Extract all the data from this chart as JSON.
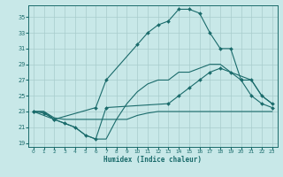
{
  "xlabel": "Humidex (Indice chaleur)",
  "xlim": [
    -0.5,
    23.5
  ],
  "ylim": [
    18.5,
    36.5
  ],
  "yticks": [
    19,
    21,
    23,
    25,
    27,
    29,
    31,
    33,
    35
  ],
  "xticks": [
    0,
    1,
    2,
    3,
    4,
    5,
    6,
    7,
    8,
    9,
    10,
    11,
    12,
    13,
    14,
    15,
    16,
    17,
    18,
    19,
    20,
    21,
    22,
    23
  ],
  "bg_color": "#c8e8e8",
  "line_color": "#1a6b6b",
  "grid_color": "#a8cccc",
  "lines": [
    {
      "x": [
        0,
        1,
        2,
        3,
        4,
        5,
        6,
        7,
        8,
        9,
        10,
        11,
        12,
        13,
        14,
        15,
        16,
        17,
        18,
        19,
        20,
        21,
        22,
        23
      ],
      "y": [
        23,
        23,
        22.2,
        22,
        22,
        22,
        22,
        22,
        22,
        22,
        22.5,
        22.8,
        23,
        23,
        23,
        23,
        23,
        23,
        23,
        23,
        23,
        23,
        23,
        23
      ],
      "marker": false
    },
    {
      "x": [
        0,
        1,
        2,
        3,
        4,
        5,
        6,
        7,
        13,
        14,
        15,
        16,
        17,
        18,
        19,
        20,
        21,
        22,
        23
      ],
      "y": [
        23,
        22.8,
        22,
        21.5,
        21,
        20,
        19.5,
        23.5,
        24,
        25,
        26,
        27,
        28,
        28.5,
        28,
        27,
        25,
        24,
        23.5
      ],
      "marker": true
    },
    {
      "x": [
        0,
        2,
        6,
        7,
        10,
        11,
        12,
        13,
        14,
        15,
        16,
        17,
        18,
        19,
        20,
        21,
        22,
        23
      ],
      "y": [
        23,
        22,
        23.5,
        27,
        31.5,
        33,
        34,
        34.5,
        36,
        36,
        35.5,
        33,
        31,
        31,
        27,
        27,
        25,
        24
      ],
      "marker": true
    },
    {
      "x": [
        0,
        1,
        2,
        3,
        4,
        5,
        6,
        7,
        8,
        9,
        10,
        11,
        12,
        13,
        14,
        15,
        16,
        17,
        18,
        19,
        20,
        21,
        22,
        23
      ],
      "y": [
        23,
        23,
        22,
        21.5,
        21,
        20,
        19.5,
        19.5,
        22,
        24,
        25.5,
        26.5,
        27,
        27,
        28,
        28,
        28.5,
        29,
        29,
        28,
        27.5,
        27,
        25,
        24
      ],
      "marker": false
    }
  ]
}
